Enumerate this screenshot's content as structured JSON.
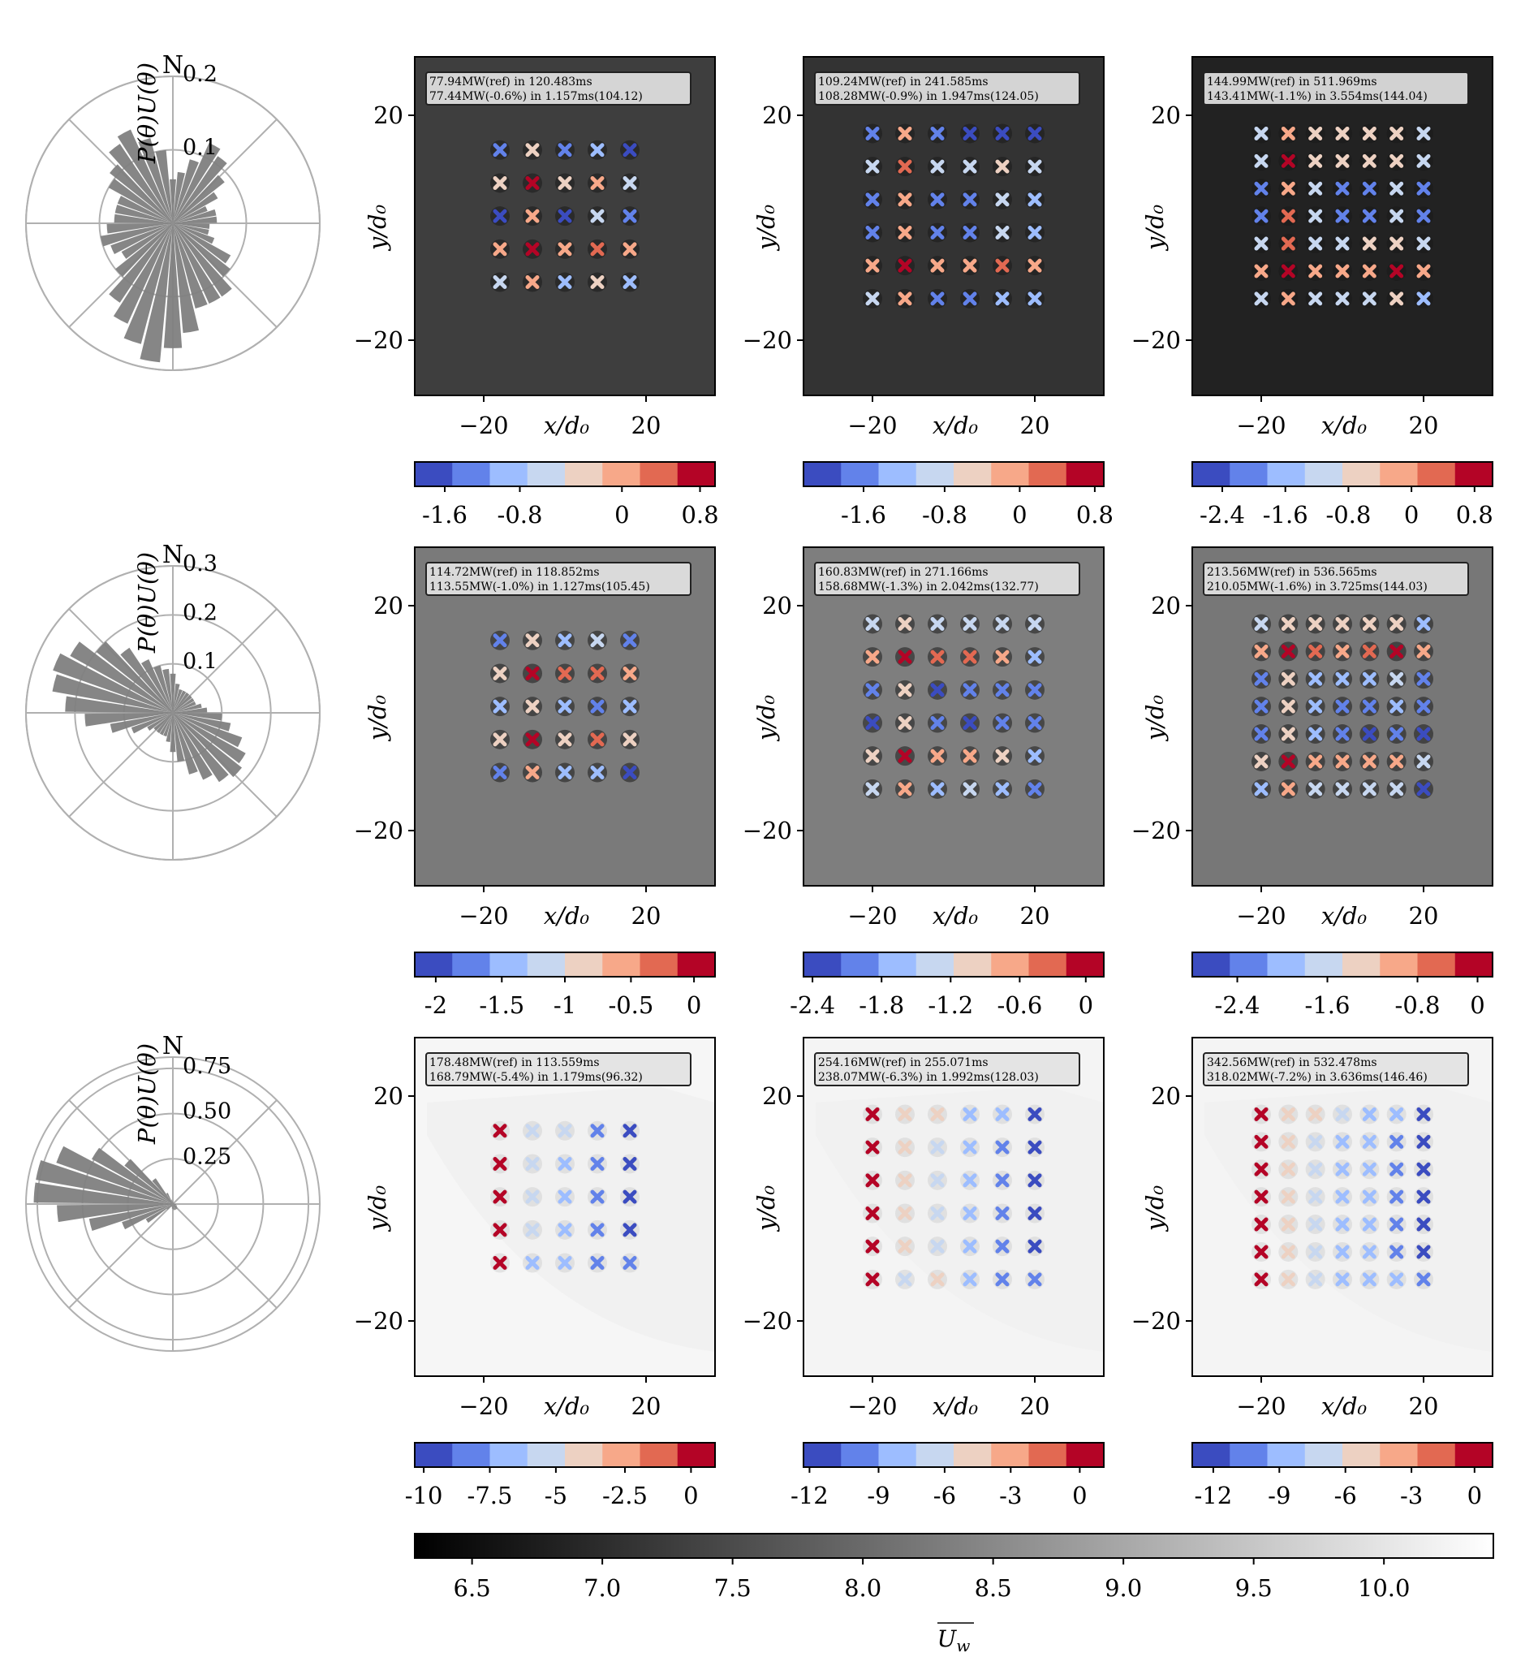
{
  "colors": {
    "cool": [
      "#3b4cc0",
      "#6282ea",
      "#9dbdff",
      "#c7d7f0",
      "#edd1c2",
      "#f7a889",
      "#e26952",
      "#b40426"
    ],
    "polar_bar": "#808080",
    "polar_grid": "#b0b0b0"
  },
  "chart_data": [
    {
      "type": "polar_bar",
      "row": 0,
      "ylabel": "P(θ)U(θ)",
      "north_label": "N",
      "rticks": [
        "0.1",
        "0.2"
      ],
      "rmax": 0.2,
      "bars": [
        0.06,
        0.07,
        0.09,
        0.12,
        0.11,
        0.09,
        0.07,
        0.05,
        0.06,
        0.06,
        0.05,
        0.05,
        0.06,
        0.09,
        0.1,
        0.12,
        0.12,
        0.12,
        0.15,
        0.17,
        0.19,
        0.17,
        0.15,
        0.13,
        0.1,
        0.08,
        0.09,
        0.1,
        0.09,
        0.08,
        0.08,
        0.08,
        0.1,
        0.11,
        0.13,
        0.14,
        0.12,
        0.1
      ]
    },
    {
      "type": "polar_bar",
      "row": 1,
      "ylabel": "P(θ)U(θ)",
      "north_label": "N",
      "rticks": [
        "0.1",
        "0.2",
        "0.3"
      ],
      "rmax": 0.3,
      "bars": [
        0.08,
        0.06,
        0.05,
        0.05,
        0.05,
        0.05,
        0.05,
        0.05,
        0.06,
        0.07,
        0.1,
        0.12,
        0.15,
        0.17,
        0.18,
        0.17,
        0.15,
        0.13,
        0.1,
        0.08,
        0.06,
        0.05,
        0.05,
        0.05,
        0.05,
        0.06,
        0.09,
        0.13,
        0.18,
        0.22,
        0.25,
        0.26,
        0.24,
        0.2,
        0.16,
        0.12,
        0.1,
        0.09
      ]
    },
    {
      "type": "polar_bar",
      "row": 2,
      "ylabel": "P(θ)U(θ)",
      "north_label": "N",
      "rticks": [
        "0.25",
        "0.50",
        "0.75"
      ],
      "rmax": 0.95,
      "bars": [
        0.01,
        0.01,
        0.01,
        0.01,
        0.01,
        0.01,
        0.01,
        0.01,
        0.01,
        0.01,
        0.02,
        0.02,
        0.03,
        0.03,
        0.04,
        0.04,
        0.04,
        0.04,
        0.04,
        0.03,
        0.03,
        0.02,
        0.02,
        0.02,
        0.05,
        0.2,
        0.35,
        0.55,
        0.75,
        0.9,
        0.9,
        0.8,
        0.6,
        0.4,
        0.2,
        0.08,
        0.03,
        0.02
      ]
    },
    {
      "type": "heatmap",
      "row": 0,
      "col": 0,
      "info": [
        "77.94MW(ref) in 120.483ms",
        "77.44MW(-0.6%) in 1.157ms(104.12)"
      ],
      "xlabel": "x/d₀",
      "ylabel": "y/d₀",
      "xticks": [
        "−20",
        "20"
      ],
      "yticks": [
        "20",
        "−20"
      ],
      "bg": "#3e3e3e",
      "turbine_colors": [
        [
          1,
          4,
          1,
          2,
          0
        ],
        [
          4,
          7,
          4,
          5,
          3
        ],
        [
          0,
          5,
          0,
          3,
          1
        ],
        [
          5,
          7,
          5,
          6,
          5
        ],
        [
          3,
          5,
          2,
          4,
          2
        ]
      ],
      "colorbar": {
        "ticks": [
          "-1.6",
          "-0.8",
          "0",
          "0.8"
        ],
        "tick_pos": [
          0.1,
          0.35,
          0.69,
          0.95
        ]
      }
    },
    {
      "type": "heatmap",
      "row": 0,
      "col": 1,
      "info": [
        "109.24MW(ref) in 241.585ms",
        "108.28MW(-0.9%) in 1.947ms(124.05)"
      ],
      "xlabel": "x/d₀",
      "ylabel": "y/d₀",
      "xticks": [
        "−20",
        "20"
      ],
      "yticks": [
        "20",
        "−20"
      ],
      "bg": "#333333",
      "turbine_colors": [
        [
          1,
          5,
          1,
          0,
          0,
          0
        ],
        [
          3,
          6,
          3,
          3,
          4,
          3
        ],
        [
          1,
          5,
          1,
          1,
          3,
          2
        ],
        [
          1,
          5,
          1,
          1,
          3,
          2
        ],
        [
          5,
          7,
          5,
          5,
          6,
          5
        ],
        [
          3,
          5,
          1,
          1,
          2,
          2
        ]
      ],
      "colorbar": {
        "ticks": [
          "-1.6",
          "-0.8",
          "0",
          "0.8"
        ],
        "tick_pos": [
          0.2,
          0.47,
          0.72,
          0.97
        ]
      }
    },
    {
      "type": "heatmap",
      "row": 0,
      "col": 2,
      "info": [
        "144.99MW(ref) in 511.969ms",
        "143.41MW(-1.1%) in 3.554ms(144.04)"
      ],
      "xlabel": "x/d₀",
      "ylabel": "y/d₀",
      "xticks": [
        "−20",
        "20"
      ],
      "yticks": [
        "20",
        "−20"
      ],
      "bg": "#222222",
      "turbine_colors": [
        [
          3,
          5,
          4,
          4,
          4,
          4,
          3
        ],
        [
          3,
          7,
          4,
          4,
          4,
          4,
          3
        ],
        [
          1,
          5,
          3,
          1,
          1,
          3,
          1
        ],
        [
          1,
          6,
          3,
          1,
          1,
          3,
          1
        ],
        [
          3,
          6,
          3,
          3,
          4,
          4,
          3
        ],
        [
          5,
          7,
          5,
          5,
          5,
          7,
          5
        ],
        [
          3,
          5,
          3,
          3,
          3,
          4,
          2
        ]
      ],
      "colorbar": {
        "ticks": [
          "-2.4",
          "-1.6",
          "-0.8",
          "0",
          "0.8"
        ],
        "tick_pos": [
          0.1,
          0.31,
          0.52,
          0.73,
          0.94
        ]
      }
    },
    {
      "type": "heatmap",
      "row": 1,
      "col": 0,
      "info": [
        "114.72MW(ref) in 118.852ms",
        "113.55MW(-1.0%) in 1.127ms(105.45)"
      ],
      "xlabel": "x/d₀",
      "ylabel": "y/d₀",
      "xticks": [
        "−20",
        "20"
      ],
      "yticks": [
        "20",
        "−20"
      ],
      "bg": "#7a7a7a",
      "turbine_colors": [
        [
          1,
          4,
          2,
          3,
          1
        ],
        [
          4,
          7,
          6,
          6,
          5
        ],
        [
          2,
          4,
          2,
          1,
          2
        ],
        [
          4,
          7,
          4,
          6,
          4
        ],
        [
          1,
          5,
          2,
          2,
          0
        ]
      ],
      "colorbar": {
        "ticks": [
          "-2",
          "-1.5",
          "-1",
          "-0.5",
          "0"
        ],
        "tick_pos": [
          0.07,
          0.29,
          0.5,
          0.72,
          0.93
        ]
      }
    },
    {
      "type": "heatmap",
      "row": 1,
      "col": 1,
      "info": [
        "160.83MW(ref) in 271.166ms",
        "158.68MW(-1.3%) in 2.042ms(132.77)"
      ],
      "xlabel": "x/d₀",
      "ylabel": "y/d₀",
      "xticks": [
        "−20",
        "20"
      ],
      "yticks": [
        "20",
        "−20"
      ],
      "bg": "#7e7e7e",
      "turbine_colors": [
        [
          3,
          4,
          3,
          3,
          3,
          3
        ],
        [
          5,
          7,
          6,
          6,
          5,
          2
        ],
        [
          1,
          4,
          0,
          1,
          1,
          1
        ],
        [
          0,
          4,
          1,
          0,
          1,
          1
        ],
        [
          4,
          7,
          5,
          5,
          4,
          2
        ],
        [
          3,
          5,
          2,
          3,
          2,
          1
        ]
      ],
      "colorbar": {
        "ticks": [
          "-2.4",
          "-1.8",
          "-1.2",
          "-0.6",
          "0"
        ],
        "tick_pos": [
          0.03,
          0.26,
          0.49,
          0.72,
          0.94
        ]
      }
    },
    {
      "type": "heatmap",
      "row": 1,
      "col": 2,
      "info": [
        "213.56MW(ref) in 536.565ms",
        "210.05MW(-1.6%) in 3.725ms(144.03)"
      ],
      "xlabel": "x/d₀",
      "ylabel": "y/d₀",
      "xticks": [
        "−20",
        "20"
      ],
      "yticks": [
        "20",
        "−20"
      ],
      "bg": "#777777",
      "turbine_colors": [
        [
          3,
          4,
          4,
          4,
          4,
          4,
          2
        ],
        [
          5,
          7,
          6,
          5,
          6,
          7,
          5
        ],
        [
          1,
          4,
          2,
          2,
          2,
          3,
          1
        ],
        [
          1,
          4,
          2,
          1,
          1,
          2,
          1
        ],
        [
          1,
          4,
          2,
          1,
          0,
          1,
          0
        ],
        [
          4,
          7,
          5,
          5,
          5,
          5,
          3
        ],
        [
          2,
          5,
          3,
          3,
          3,
          3,
          0
        ]
      ],
      "colorbar": {
        "ticks": [
          "-2.4",
          "-1.6",
          "-0.8",
          "0"
        ],
        "tick_pos": [
          0.15,
          0.45,
          0.75,
          0.95
        ]
      }
    },
    {
      "type": "heatmap",
      "row": 2,
      "col": 0,
      "info": [
        "178.48MW(ref) in 113.559ms",
        "168.79MW(-5.4%) in 1.179ms(96.32)"
      ],
      "xlabel": "x/d₀",
      "ylabel": "y/d₀",
      "xticks": [
        "−20",
        "20"
      ],
      "yticks": [
        "20",
        "−20"
      ],
      "bg": "#f6f6f6",
      "turbine_colors": [
        [
          7,
          3,
          3,
          1,
          0
        ],
        [
          7,
          3,
          2,
          1,
          0
        ],
        [
          7,
          3,
          2,
          1,
          0
        ],
        [
          7,
          3,
          2,
          1,
          0
        ],
        [
          7,
          2,
          2,
          1,
          1
        ]
      ],
      "colorbar": {
        "ticks": [
          "-10",
          "-7.5",
          "-5",
          "-2.5",
          "0"
        ],
        "tick_pos": [
          0.03,
          0.25,
          0.47,
          0.7,
          0.92
        ]
      }
    },
    {
      "type": "heatmap",
      "row": 2,
      "col": 1,
      "info": [
        "254.16MW(ref) in 255.071ms",
        "238.07MW(-6.3%) in 1.992ms(128.03)"
      ],
      "xlabel": "x/d₀",
      "ylabel": "y/d₀",
      "xticks": [
        "−20",
        "20"
      ],
      "yticks": [
        "20",
        "−20"
      ],
      "bg": "#f4f4f4",
      "turbine_colors": [
        [
          7,
          4,
          4,
          2,
          2,
          0
        ],
        [
          7,
          4,
          3,
          2,
          1,
          0
        ],
        [
          7,
          4,
          3,
          2,
          1,
          0
        ],
        [
          7,
          4,
          3,
          2,
          1,
          0
        ],
        [
          7,
          4,
          3,
          2,
          1,
          0
        ],
        [
          7,
          3,
          4,
          2,
          1,
          1
        ]
      ],
      "colorbar": {
        "ticks": [
          "-12",
          "-9",
          "-6",
          "-3",
          "0"
        ],
        "tick_pos": [
          0.02,
          0.25,
          0.47,
          0.69,
          0.92
        ]
      }
    },
    {
      "type": "heatmap",
      "row": 2,
      "col": 2,
      "info": [
        "342.56MW(ref) in 532.478ms",
        "318.02MW(-7.2%) in 3.636ms(146.46)"
      ],
      "xlabel": "x/d₀",
      "ylabel": "y/d₀",
      "xticks": [
        "−20",
        "20"
      ],
      "yticks": [
        "20",
        "−20"
      ],
      "bg": "#f4f4f4",
      "turbine_colors": [
        [
          7,
          4,
          4,
          3,
          2,
          2,
          0
        ],
        [
          7,
          4,
          3,
          2,
          2,
          1,
          0
        ],
        [
          7,
          4,
          3,
          2,
          2,
          1,
          0
        ],
        [
          7,
          4,
          3,
          2,
          2,
          1,
          0
        ],
        [
          7,
          4,
          3,
          2,
          2,
          1,
          0
        ],
        [
          7,
          4,
          3,
          2,
          2,
          1,
          0
        ],
        [
          7,
          4,
          3,
          2,
          2,
          2,
          1
        ]
      ],
      "colorbar": {
        "ticks": [
          "-12",
          "-9",
          "-6",
          "-3",
          "0"
        ],
        "tick_pos": [
          0.07,
          0.29,
          0.51,
          0.73,
          0.94
        ]
      }
    },
    {
      "type": "colorbar",
      "label": "U̅w",
      "ticks": [
        "6.5",
        "7.0",
        "7.5",
        "8.0",
        "8.5",
        "9.0",
        "9.5",
        "10.0"
      ],
      "range": [
        6.28,
        10.42
      ]
    }
  ],
  "annotations": {
    "colorbar_label_main": "U",
    "colorbar_label_sub": "w"
  }
}
